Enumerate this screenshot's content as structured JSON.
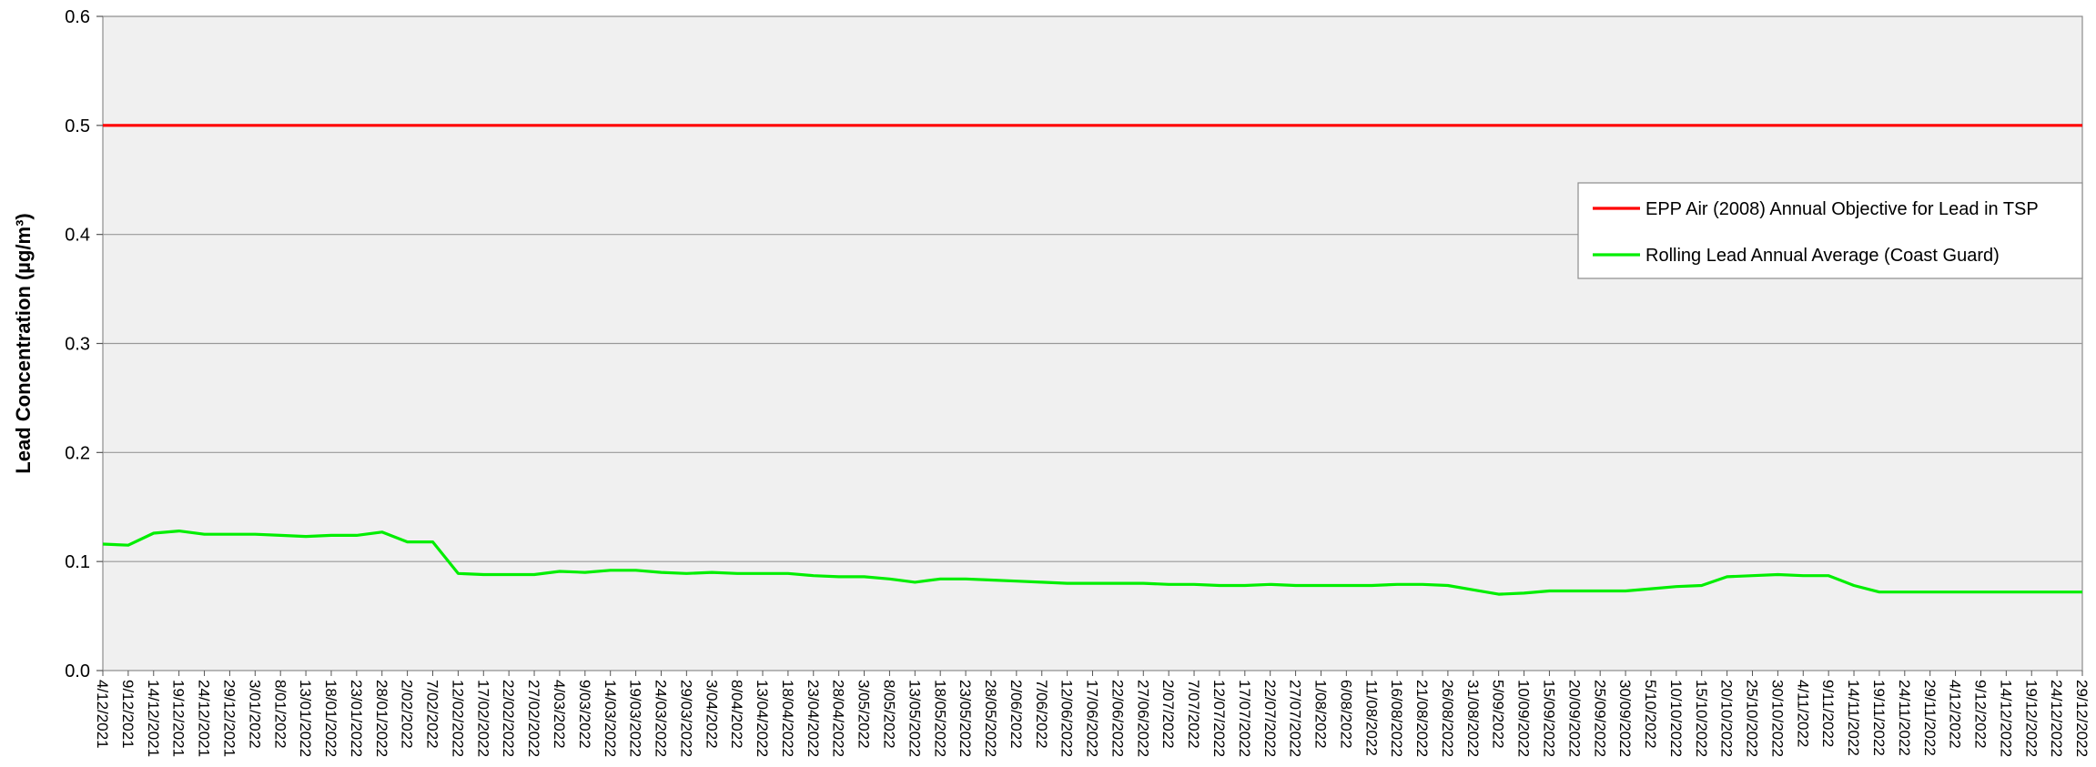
{
  "chart_data": {
    "type": "line",
    "title": "",
    "xlabel": "",
    "ylabel": "Lead Concentration (µg/m³)",
    "ylim": [
      0,
      0.6
    ],
    "yticks": [
      "0.0",
      "0.1",
      "0.2",
      "0.3",
      "0.4",
      "0.5",
      "0.6"
    ],
    "grid": true,
    "legend_position": "right",
    "colors": {
      "objective": "#ff0000",
      "average": "#00ee00",
      "plot_bg": "#f0f0f0",
      "grid": "#999999"
    },
    "x": [
      "4/12/2021",
      "9/12/2021",
      "14/12/2021",
      "19/12/2021",
      "24/12/2021",
      "29/12/2021",
      "3/01/2022",
      "8/01/2022",
      "13/01/2022",
      "18/01/2022",
      "23/01/2022",
      "28/01/2022",
      "2/02/2022",
      "7/02/2022",
      "12/02/2022",
      "17/02/2022",
      "22/02/2022",
      "27/02/2022",
      "4/03/2022",
      "9/03/2022",
      "14/03/2022",
      "19/03/2022",
      "24/03/2022",
      "29/03/2022",
      "3/04/2022",
      "8/04/2022",
      "13/04/2022",
      "18/04/2022",
      "23/04/2022",
      "28/04/2022",
      "3/05/2022",
      "8/05/2022",
      "13/05/2022",
      "18/05/2022",
      "23/05/2022",
      "28/05/2022",
      "2/06/2022",
      "7/06/2022",
      "12/06/2022",
      "17/06/2022",
      "22/06/2022",
      "27/06/2022",
      "2/07/2022",
      "7/07/2022",
      "12/07/2022",
      "17/07/2022",
      "22/07/2022",
      "27/07/2022",
      "1/08/2022",
      "6/08/2022",
      "11/08/2022",
      "16/08/2022",
      "21/08/2022",
      "26/08/2022",
      "31/08/2022",
      "5/09/2022",
      "10/09/2022",
      "15/09/2022",
      "20/09/2022",
      "25/09/2022",
      "30/09/2022",
      "5/10/2022",
      "10/10/2022",
      "15/10/2022",
      "20/10/2022",
      "25/10/2022",
      "30/10/2022",
      "4/11/2022",
      "9/11/2022",
      "14/11/2022",
      "19/11/2022",
      "24/11/2022",
      "29/11/2022",
      "4/12/2022",
      "9/12/2022",
      "14/12/2022",
      "19/12/2022",
      "24/12/2022",
      "29/12/2022"
    ],
    "series": [
      {
        "name": "EPP Air (2008) Annual Objective for Lead in TSP",
        "color": "#ff0000",
        "values": [
          0.5,
          0.5,
          0.5,
          0.5,
          0.5,
          0.5,
          0.5,
          0.5,
          0.5,
          0.5,
          0.5,
          0.5,
          0.5,
          0.5,
          0.5,
          0.5,
          0.5,
          0.5,
          0.5,
          0.5,
          0.5,
          0.5,
          0.5,
          0.5,
          0.5,
          0.5,
          0.5,
          0.5,
          0.5,
          0.5,
          0.5,
          0.5,
          0.5,
          0.5,
          0.5,
          0.5,
          0.5,
          0.5,
          0.5,
          0.5,
          0.5,
          0.5,
          0.5,
          0.5,
          0.5,
          0.5,
          0.5,
          0.5,
          0.5,
          0.5,
          0.5,
          0.5,
          0.5,
          0.5,
          0.5,
          0.5,
          0.5,
          0.5,
          0.5,
          0.5,
          0.5,
          0.5,
          0.5,
          0.5,
          0.5,
          0.5,
          0.5,
          0.5,
          0.5,
          0.5,
          0.5,
          0.5,
          0.5,
          0.5,
          0.5,
          0.5,
          0.5,
          0.5,
          0.5
        ]
      },
      {
        "name": "Rolling Lead Annual Average (Coast Guard)",
        "color": "#00ee00",
        "values": [
          0.116,
          0.115,
          0.126,
          0.128,
          0.125,
          0.125,
          0.125,
          0.124,
          0.123,
          0.124,
          0.124,
          0.127,
          0.118,
          0.118,
          0.089,
          0.088,
          0.088,
          0.088,
          0.091,
          0.09,
          0.092,
          0.092,
          0.09,
          0.089,
          0.09,
          0.089,
          0.089,
          0.089,
          0.087,
          0.086,
          0.086,
          0.084,
          0.081,
          0.084,
          0.084,
          0.083,
          0.082,
          0.081,
          0.08,
          0.08,
          0.08,
          0.08,
          0.079,
          0.079,
          0.078,
          0.078,
          0.079,
          0.078,
          0.078,
          0.078,
          0.078,
          0.079,
          0.079,
          0.078,
          0.074,
          0.07,
          0.071,
          0.073,
          0.073,
          0.073,
          0.073,
          0.075,
          0.077,
          0.078,
          0.086,
          0.087,
          0.088,
          0.087,
          0.087,
          0.078,
          0.072,
          0.072,
          0.072,
          0.072,
          0.072,
          0.072,
          0.072,
          0.072,
          0.072
        ]
      }
    ]
  }
}
